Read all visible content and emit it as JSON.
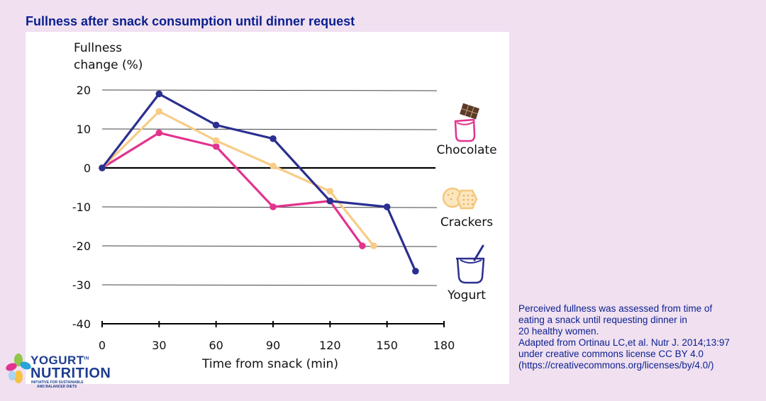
{
  "page_title": "Fullness after snack consumption until dinner request",
  "caption_lines": [
    "Perceived fullness was assessed from time of",
    "eating a snack until requesting dinner in",
    "20 healthy women.",
    "Adapted from Ortinau LC,et al. Nutr J. 2014;13:97",
    "under creative commons license CC BY 4.0",
    "(https://creativecommons.org/licenses/by/4.0/)"
  ],
  "logo": {
    "word1": "YOGURT",
    "word1_sup": "IN",
    "word2": "NUTRITION",
    "tagline_line1": "INITIATIVE FOR SUSTAINABLE",
    "tagline_line2": "AND BALANCED DIETS"
  },
  "chart_data": {
    "type": "line",
    "ylabel_line1": "Fullness",
    "ylabel_line2": "change (%)",
    "xlabel": "Time from snack (min)",
    "xlim": [
      0,
      180
    ],
    "ylim": [
      -40,
      20
    ],
    "xticks": [
      0,
      30,
      60,
      90,
      120,
      150,
      180
    ],
    "yticks": [
      20,
      10,
      0,
      -10,
      -20,
      -30,
      -40
    ],
    "ytick_labels": [
      "20",
      "10",
      "0",
      "-10",
      "-20",
      "-30",
      "-40"
    ],
    "grid": true,
    "series": [
      {
        "name": "Chocolate",
        "color": "#e2338e",
        "icon": "chocolate-icon",
        "x": [
          0,
          30,
          60,
          90,
          120,
          137
        ],
        "y": [
          0,
          9,
          5.5,
          -10,
          -8.5,
          -20
        ]
      },
      {
        "name": "Crackers",
        "color": "#f8cc87",
        "icon": "crackers-icon",
        "x": [
          0,
          30,
          60,
          90,
          120,
          143
        ],
        "y": [
          0,
          14.5,
          7,
          0.5,
          -6,
          -20
        ]
      },
      {
        "name": "Yogurt",
        "color": "#2b2f8f",
        "icon": "yogurt-icon",
        "x": [
          0,
          30,
          60,
          90,
          120,
          150,
          165
        ],
        "y": [
          0,
          19,
          11,
          7.5,
          -8.5,
          -10,
          -26.5
        ]
      }
    ]
  }
}
